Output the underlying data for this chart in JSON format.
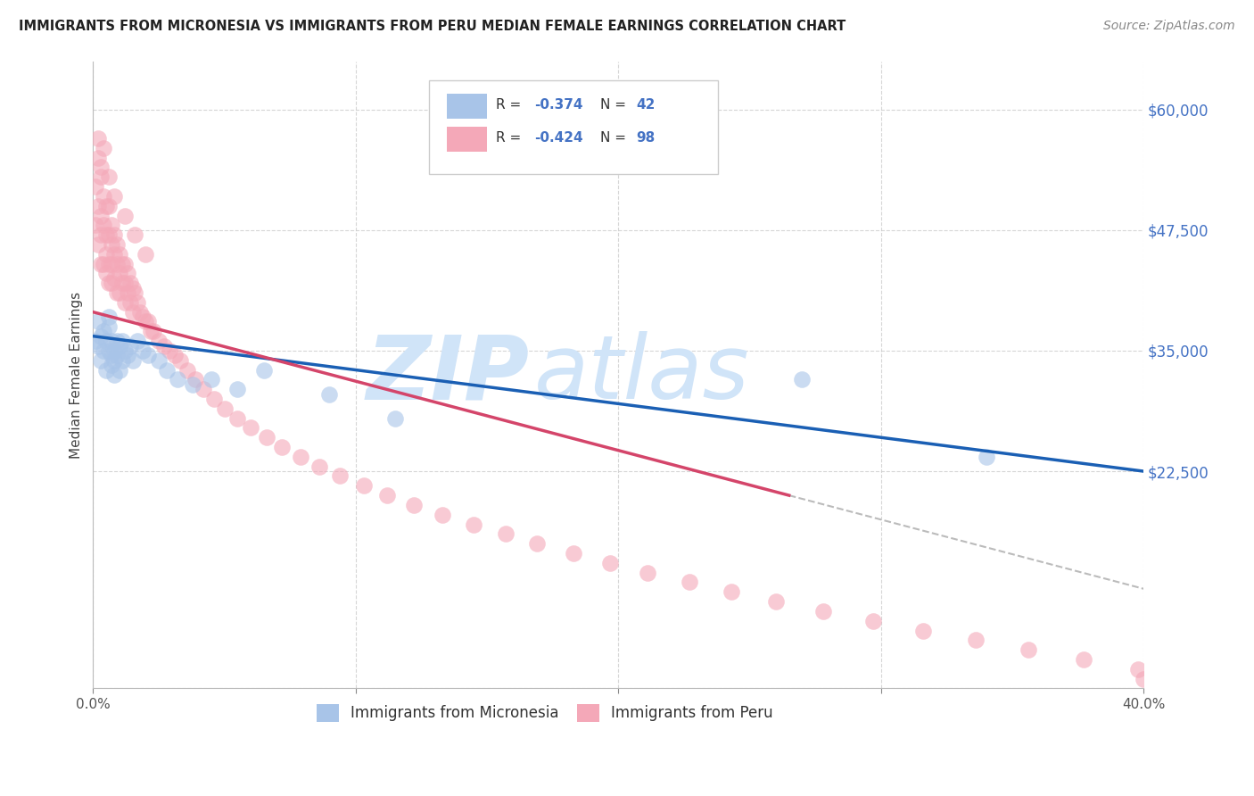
{
  "title": "IMMIGRANTS FROM MICRONESIA VS IMMIGRANTS FROM PERU MEDIAN FEMALE EARNINGS CORRELATION CHART",
  "source": "Source: ZipAtlas.com",
  "ylabel": "Median Female Earnings",
  "xlim": [
    0.0,
    0.4
  ],
  "ylim": [
    0,
    65000
  ],
  "yticks": [
    0,
    22500,
    35000,
    47500,
    60000
  ],
  "xticks": [
    0.0,
    0.1,
    0.2,
    0.3,
    0.4
  ],
  "xtick_labels": [
    "0.0%",
    "",
    "",
    "",
    "40.0%"
  ],
  "ytick_labels": [
    "",
    "$22,500",
    "$35,000",
    "$47,500",
    "$60,000"
  ],
  "micronesia_color": "#a8c4e8",
  "peru_color": "#f4a8b8",
  "blue_line_color": "#1a5fb4",
  "pink_line_color": "#d4456a",
  "watermark_color": "#d0e4f8",
  "micronesia_x": [
    0.001,
    0.002,
    0.002,
    0.003,
    0.003,
    0.004,
    0.004,
    0.005,
    0.005,
    0.006,
    0.006,
    0.006,
    0.007,
    0.007,
    0.007,
    0.008,
    0.008,
    0.008,
    0.009,
    0.009,
    0.01,
    0.01,
    0.011,
    0.011,
    0.012,
    0.013,
    0.014,
    0.015,
    0.017,
    0.019,
    0.021,
    0.025,
    0.028,
    0.032,
    0.038,
    0.045,
    0.055,
    0.065,
    0.09,
    0.115,
    0.27,
    0.34
  ],
  "micronesia_y": [
    36000,
    35500,
    38000,
    36500,
    34000,
    37000,
    35000,
    36000,
    33000,
    37500,
    35000,
    38500,
    34500,
    36000,
    33500,
    35000,
    34000,
    32500,
    36000,
    34500,
    35500,
    33000,
    36000,
    34000,
    35000,
    34500,
    35500,
    34000,
    36000,
    35000,
    34500,
    34000,
    33000,
    32000,
    31500,
    32000,
    31000,
    33000,
    30500,
    28000,
    32000,
    24000
  ],
  "peru_x": [
    0.001,
    0.001,
    0.002,
    0.002,
    0.002,
    0.003,
    0.003,
    0.003,
    0.003,
    0.004,
    0.004,
    0.004,
    0.005,
    0.005,
    0.005,
    0.005,
    0.006,
    0.006,
    0.006,
    0.006,
    0.007,
    0.007,
    0.007,
    0.007,
    0.008,
    0.008,
    0.008,
    0.009,
    0.009,
    0.009,
    0.01,
    0.01,
    0.01,
    0.011,
    0.011,
    0.012,
    0.012,
    0.012,
    0.013,
    0.013,
    0.014,
    0.014,
    0.015,
    0.015,
    0.016,
    0.017,
    0.018,
    0.019,
    0.02,
    0.021,
    0.022,
    0.023,
    0.025,
    0.027,
    0.029,
    0.031,
    0.033,
    0.036,
    0.039,
    0.042,
    0.046,
    0.05,
    0.055,
    0.06,
    0.066,
    0.072,
    0.079,
    0.086,
    0.094,
    0.103,
    0.112,
    0.122,
    0.133,
    0.145,
    0.157,
    0.169,
    0.183,
    0.197,
    0.211,
    0.227,
    0.243,
    0.26,
    0.278,
    0.297,
    0.316,
    0.336,
    0.356,
    0.377,
    0.398,
    0.4,
    0.002,
    0.003,
    0.004,
    0.006,
    0.008,
    0.012,
    0.016,
    0.02
  ],
  "peru_y": [
    52000,
    48000,
    55000,
    50000,
    46000,
    53000,
    49000,
    47000,
    44000,
    51000,
    48000,
    44000,
    50000,
    47000,
    45000,
    43000,
    50000,
    47000,
    44000,
    42000,
    48000,
    46000,
    44000,
    42000,
    47000,
    45000,
    42500,
    46000,
    44000,
    41000,
    45000,
    43000,
    41000,
    44000,
    42000,
    44000,
    42000,
    40000,
    43000,
    41000,
    42000,
    40000,
    41500,
    39000,
    41000,
    40000,
    39000,
    38500,
    38000,
    38000,
    37000,
    37000,
    36000,
    35500,
    35000,
    34500,
    34000,
    33000,
    32000,
    31000,
    30000,
    29000,
    28000,
    27000,
    26000,
    25000,
    24000,
    23000,
    22000,
    21000,
    20000,
    19000,
    18000,
    17000,
    16000,
    15000,
    14000,
    13000,
    12000,
    11000,
    10000,
    9000,
    8000,
    7000,
    6000,
    5000,
    4000,
    3000,
    2000,
    1000,
    57000,
    54000,
    56000,
    53000,
    51000,
    49000,
    47000,
    45000
  ]
}
